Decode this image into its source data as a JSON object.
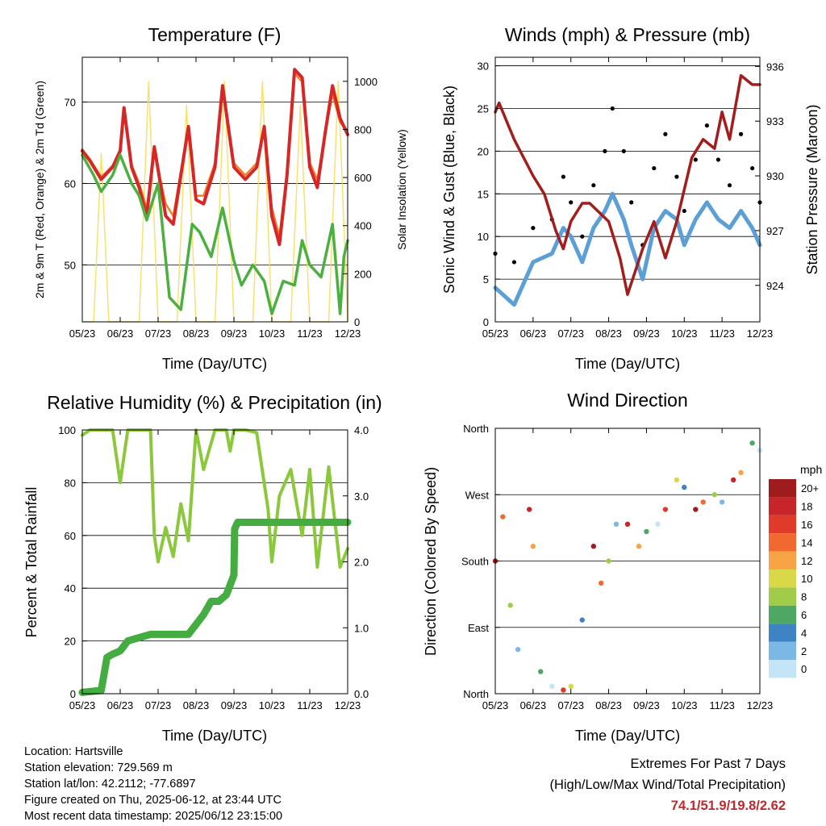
{
  "days": [
    "05/23",
    "06/23",
    "07/23",
    "08/23",
    "09/23",
    "10/23",
    "11/23",
    "12/23"
  ],
  "panels": {
    "temperature": {
      "title": "Temperature (F)",
      "xlabel": "Time (Day/UTC)",
      "ylabel_left": "2m & 9m T (Red, Orange) & 2m Td (Green)",
      "ylabel_right": "Solar Insolation (Yellow)",
      "left_ticks": [
        "50",
        "60",
        "70"
      ],
      "right_ticks": [
        "0",
        "200",
        "400",
        "600",
        "800",
        "1000"
      ]
    },
    "winds": {
      "title": "Winds (mph) & Pressure (mb)",
      "xlabel": "Time (Day/UTC)",
      "ylabel_left": "Sonic Wind & Gust (Blue, Black)",
      "ylabel_right": "Station Pressure (Maroon)",
      "left_ticks": [
        "0",
        "5",
        "10",
        "15",
        "20",
        "25",
        "30"
      ],
      "right_ticks": [
        "924",
        "927",
        "930",
        "933",
        "936"
      ]
    },
    "humidity": {
      "title": "Relative Humidity (%) & Precipitation (in)",
      "xlabel": "Time (Day/UTC)",
      "ylabel_left": "Percent & Total Rainfall",
      "left_ticks": [
        "0",
        "20",
        "40",
        "60",
        "80",
        "100"
      ],
      "right_ticks": [
        "0.0",
        "1.0",
        "2.0",
        "3.0",
        "4.0"
      ]
    },
    "direction": {
      "title": "Wind Direction",
      "xlabel": "Time (Day/UTC)",
      "ylabel_left": "Direction (Colored By Speed)",
      "dir_ticks": [
        "North",
        "East",
        "South",
        "West",
        "North"
      ],
      "legend_title": "mph",
      "legend_labels": [
        "20+",
        "18",
        "16",
        "14",
        "12",
        "10",
        "8",
        "6",
        "4",
        "2",
        "0"
      ],
      "legend_colors": [
        "#a01c1c",
        "#c8252a",
        "#e03a2a",
        "#f06a30",
        "#f6a446",
        "#d8d848",
        "#a0cc4a",
        "#4ea864",
        "#3e84c4",
        "#7cb8e6",
        "#c4e4f8"
      ]
    }
  },
  "chart_data": [
    {
      "type": "line",
      "title": "Temperature (F)",
      "xlabel": "Time (Day/UTC)",
      "ylabel": "2m & 9m T (Red, Orange) & 2m Td (Green)",
      "ylabel_right": "Solar Insolation (Yellow)",
      "categories": [
        "05/23",
        "06/23",
        "07/23",
        "08/23",
        "09/23",
        "10/23",
        "11/23",
        "12/23"
      ],
      "ylim": [
        43,
        75.5
      ],
      "ylim_right": [
        0,
        1100
      ],
      "series": [
        {
          "color": "#d62626",
          "axis": "left",
          "x": [
            0,
            0.2,
            0.5,
            0.8,
            1.0,
            1.1,
            1.3,
            1.5,
            1.7,
            1.9,
            2.2,
            2.4,
            2.6,
            2.8,
            3.0,
            3.2,
            3.5,
            3.7,
            4.0,
            4.3,
            4.6,
            4.8,
            5.0,
            5.2,
            5.4,
            5.6,
            5.8,
            6.0,
            6.2,
            6.4,
            6.6,
            6.8,
            7.0
          ],
          "y": [
            64,
            62.8,
            60.5,
            62,
            64,
            69.3,
            62,
            59.5,
            56,
            64.5,
            56,
            55,
            61,
            67,
            58,
            57.5,
            62,
            72,
            62,
            60.5,
            62,
            67,
            56,
            52.5,
            61,
            74,
            73,
            62,
            59.5,
            66,
            72,
            68,
            66
          ]
        },
        {
          "color": "#f07f2a",
          "axis": "left",
          "x": [
            0,
            0.2,
            0.5,
            0.8,
            1.0,
            1.1,
            1.3,
            1.5,
            1.7,
            1.9,
            2.2,
            2.4,
            2.6,
            2.8,
            3.0,
            3.2,
            3.5,
            3.7,
            4.0,
            4.3,
            4.6,
            4.8,
            5.0,
            5.2,
            5.4,
            5.6,
            5.8,
            6.0,
            6.2,
            6.4,
            6.6,
            6.8,
            7.0
          ],
          "y": [
            64.2,
            63,
            60.8,
            62.2,
            64.2,
            69,
            62.3,
            60,
            57,
            64,
            57.5,
            56,
            61.5,
            66.5,
            58.5,
            58.5,
            62.5,
            71.5,
            62.5,
            61,
            62.5,
            66.5,
            57,
            53.5,
            61.5,
            73.5,
            72.5,
            62.5,
            60.5,
            66,
            71,
            67.5,
            66.5
          ]
        },
        {
          "color": "#4cb040",
          "axis": "left",
          "x": [
            0,
            0.3,
            0.5,
            0.8,
            1.0,
            1.3,
            1.5,
            1.7,
            2.0,
            2.3,
            2.6,
            2.9,
            3.1,
            3.4,
            3.7,
            4.0,
            4.2,
            4.5,
            4.8,
            5.0,
            5.3,
            5.6,
            5.8,
            6.0,
            6.3,
            6.6,
            6.8,
            6.9,
            7.0
          ],
          "y": [
            63.5,
            61,
            59,
            61,
            63.5,
            60,
            58.5,
            55.5,
            60,
            46,
            44.5,
            55,
            54,
            51,
            57,
            50.5,
            47.5,
            50,
            48,
            44,
            48,
            47.5,
            53,
            50,
            48.5,
            55,
            44,
            51,
            53
          ]
        },
        {
          "color": "#f7d94a",
          "axis": "right",
          "x": [
            0,
            0.3,
            0.5,
            0.7,
            1.0,
            1.5,
            1.75,
            2.0,
            2.5,
            2.75,
            3.0,
            3.5,
            3.75,
            4.0,
            4.5,
            4.75,
            5.0,
            5.5,
            5.75,
            6.0,
            6.5,
            6.75,
            7.0
          ],
          "y": [
            0,
            0,
            700,
            0,
            0,
            0,
            1000,
            0,
            0,
            900,
            0,
            0,
            1000,
            0,
            0,
            1000,
            0,
            0,
            900,
            0,
            0,
            1000,
            0
          ]
        }
      ]
    },
    {
      "type": "scatter",
      "title": "Winds (mph) & Pressure (mb)",
      "xlabel": "Time (Day/UTC)",
      "ylabel": "Sonic Wind & Gust (Blue, Black)",
      "ylabel_right": "Station Pressure (Maroon)",
      "categories": [
        "05/23",
        "06/23",
        "07/23",
        "08/23",
        "09/23",
        "10/23",
        "11/23",
        "12/23"
      ],
      "ylim": [
        0,
        31
      ],
      "ylim_right": [
        922.0,
        936.5
      ],
      "series": [
        {
          "color": "#000000",
          "x": [
            0,
            0.5,
            1.0,
            1.5,
            1.8,
            2.0,
            2.3,
            2.6,
            2.9,
            3.1,
            3.4,
            3.6,
            3.9,
            4.2,
            4.5,
            4.8,
            5.0,
            5.3,
            5.6,
            5.9,
            6.2,
            6.5,
            6.8,
            7.0
          ],
          "y": [
            8,
            7,
            11,
            12,
            17,
            14,
            10,
            16,
            20,
            25,
            20,
            14,
            9,
            18,
            22,
            17,
            13,
            19,
            23,
            19,
            16,
            22,
            18,
            14
          ]
        },
        {
          "color": "#5b9fd6",
          "x": [
            0,
            0.5,
            1.0,
            1.5,
            1.8,
            2.0,
            2.3,
            2.6,
            2.9,
            3.1,
            3.4,
            3.6,
            3.9,
            4.2,
            4.5,
            4.8,
            5.0,
            5.3,
            5.6,
            5.9,
            6.2,
            6.5,
            6.8,
            7.0
          ],
          "y": [
            4,
            2,
            7,
            8,
            11,
            10,
            7,
            11,
            13,
            15,
            12,
            9,
            5,
            11,
            13,
            12,
            9,
            12,
            14,
            12,
            11,
            13,
            11,
            9
          ]
        },
        {
          "color": "#a31d1d",
          "axis": "right",
          "x": [
            0,
            0.1,
            0.5,
            1.0,
            1.3,
            1.6,
            1.8,
            2.0,
            2.3,
            2.5,
            3.0,
            3.3,
            3.5,
            3.9,
            4.2,
            4.5,
            4.8,
            5.2,
            5.5,
            5.8,
            6.0,
            6.2,
            6.5,
            6.8,
            7.0
          ],
          "y": [
            933.5,
            934.0,
            932.0,
            930.0,
            929.0,
            927.0,
            926.0,
            927.5,
            928.5,
            928.5,
            927.5,
            925.5,
            923.5,
            926.0,
            927.5,
            925.5,
            927.5,
            931.0,
            932.0,
            931.5,
            933.5,
            932.0,
            935.5,
            935.0,
            935.0
          ]
        }
      ]
    },
    {
      "type": "line",
      "title": "Relative Humidity (%) & Precipitation (in)",
      "xlabel": "Time (Day/UTC)",
      "ylabel": "Percent & Total Rainfall",
      "categories": [
        "05/23",
        "06/23",
        "07/23",
        "08/23",
        "09/23",
        "10/23",
        "11/23",
        "12/23"
      ],
      "ylim": [
        0,
        100
      ],
      "ylim_right": [
        0.0,
        4.0
      ],
      "series": [
        {
          "color": "#8cc83c",
          "x": [
            0,
            0.2,
            0.5,
            0.8,
            1.0,
            1.2,
            1.4,
            1.6,
            1.8,
            1.9,
            2.0,
            2.2,
            2.4,
            2.6,
            2.8,
            3.0,
            3.2,
            3.5,
            3.8,
            3.9,
            4.0,
            4.3,
            4.6,
            4.9,
            5.0,
            5.2,
            5.5,
            5.8,
            6.0,
            6.2,
            6.5,
            6.8,
            7.0
          ],
          "y": [
            98,
            100,
            100,
            100,
            80,
            100,
            100,
            100,
            100,
            60,
            50,
            63,
            52,
            72,
            58,
            100,
            85,
            100,
            100,
            92,
            100,
            100,
            99,
            70,
            50,
            75,
            85,
            60,
            85,
            48,
            86,
            48,
            55
          ]
        },
        {
          "color": "#44ac40",
          "x": [
            0,
            0.5,
            0.65,
            0.8,
            1.0,
            1.2,
            1.5,
            1.8,
            2.0,
            2.4,
            2.8,
            3.2,
            3.4,
            3.6,
            3.8,
            4.0,
            4.02,
            4.1,
            4.2,
            4.5,
            5.0,
            6.0,
            7.0
          ],
          "y": [
            0.02,
            0.05,
            0.55,
            0.6,
            0.65,
            0.8,
            0.85,
            0.9,
            0.9,
            0.9,
            0.9,
            1.2,
            1.4,
            1.4,
            1.5,
            1.8,
            2.5,
            2.6,
            2.6,
            2.6,
            2.6,
            2.6,
            2.6
          ]
        }
      ]
    },
    {
      "type": "scatter",
      "title": "Wind Direction",
      "xlabel": "Time (Day/UTC)",
      "ylabel": "Direction (Colored By Speed)",
      "categories": [
        "05/23",
        "06/23",
        "07/23",
        "08/23",
        "09/23",
        "10/23",
        "11/23",
        "12/23"
      ],
      "y_categories": [
        "North",
        "East",
        "South",
        "West",
        "North"
      ],
      "ylim": [
        0,
        360
      ],
      "series": [
        {
          "x": [
            0,
            0.2,
            0.4,
            0.6,
            0.9,
            1.0,
            1.2,
            1.5,
            1.8,
            2.0,
            2.3,
            2.6,
            2.8,
            3.0,
            3.2,
            3.5,
            3.8,
            4.0,
            4.3,
            4.5,
            4.8,
            5.0,
            5.3,
            5.5,
            5.8,
            6.0,
            6.3,
            6.5,
            6.8,
            7.0
          ],
          "y": [
            180,
            240,
            120,
            60,
            250,
            200,
            30,
            10,
            5,
            10,
            100,
            200,
            150,
            180,
            230,
            230,
            200,
            220,
            230,
            250,
            290,
            280,
            250,
            260,
            270,
            260,
            290,
            300,
            340,
            330
          ]
        }
      ]
    }
  ],
  "info": {
    "location": "Location: Hartsville",
    "elevation": "Station elevation: 729.569 m",
    "latlon": "Station lat/lon: 42.2112; -77.6897",
    "created": "Figure created on Thu, 2025-06-12, at 23:44 UTC",
    "recent": "Most recent data timestamp: 2025/06/12 23:15:00"
  },
  "extremes": {
    "title": "Extremes For Past 7 Days",
    "subtitle": "(High/Low/Max Wind/Total Precipitation)",
    "values": "74.1/51.9/19.8/2.62"
  }
}
